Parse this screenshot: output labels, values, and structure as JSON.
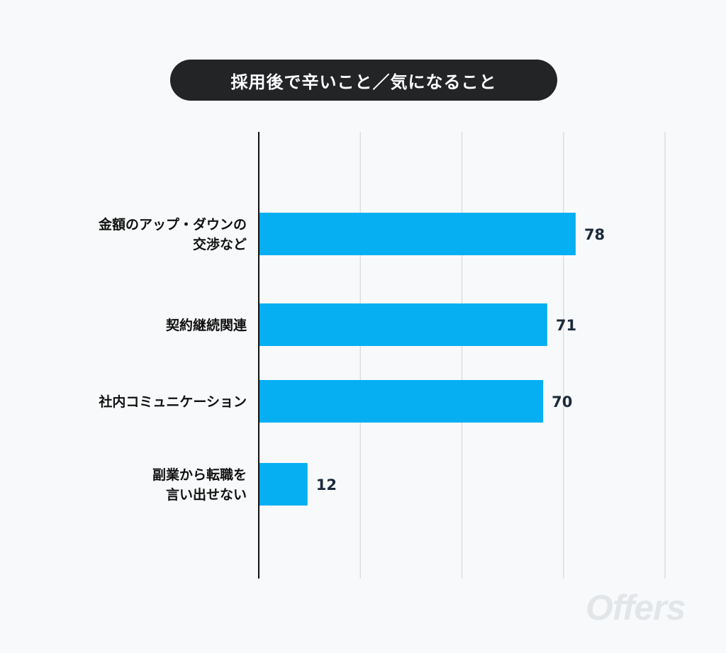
{
  "title": "採用後で辛いこと／気になること",
  "watermark": "Offers",
  "chart_data": {
    "type": "bar",
    "orientation": "horizontal",
    "title": "採用後で辛いこと／気になること",
    "categories": [
      [
        "金額のアップ・ダウンの",
        "交渉など"
      ],
      [
        "契約継続関連"
      ],
      [
        "社内コミュニケーション"
      ],
      [
        "副業から転職を",
        "言い出せない"
      ]
    ],
    "values": [
      78,
      71,
      70,
      12
    ],
    "value_labels": [
      "78",
      "71",
      "70",
      "12"
    ],
    "xlim": [
      0,
      100
    ],
    "gridlines": [
      25,
      50,
      75,
      100
    ],
    "grid": true,
    "bar_color": "#06aff2",
    "axis_color": "#111111",
    "grid_color": "#dedede"
  }
}
